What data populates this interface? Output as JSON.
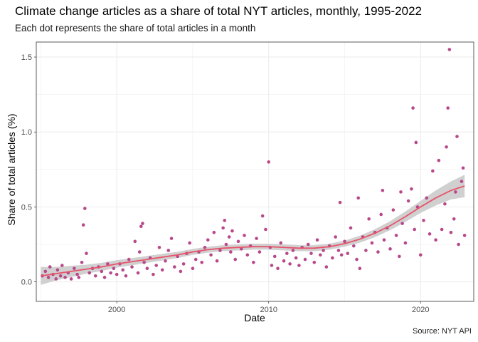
{
  "chart_data": {
    "type": "scatter",
    "title": "Climate change articles as a share of total NYT articles, monthly, 1995-2022",
    "subtitle": "Each dot represents the share of total articles in a month",
    "caption": "Source: NYT API",
    "xlabel": "Date",
    "ylabel": "Share of total articles (%)",
    "xlim": [
      1994.7,
      2023.5
    ],
    "ylim": [
      -0.13,
      1.6
    ],
    "x_ticks": [
      2000,
      2010,
      2020
    ],
    "x_tick_labels": [
      "2000",
      "2010",
      "2020"
    ],
    "y_ticks": [
      0.0,
      0.5,
      1.0,
      1.5
    ],
    "y_tick_labels": [
      "0.0",
      "0.5",
      "1.0",
      "1.5"
    ],
    "grid": true,
    "legend": "none",
    "colors": {
      "points": "#b8488a",
      "smooth": "#e8536a",
      "band": "#c8c8c8",
      "grid": "#ebebeb"
    },
    "points": [
      [
        1995.1,
        0.04
      ],
      [
        1995.3,
        0.07
      ],
      [
        1995.5,
        0.03
      ],
      [
        1995.6,
        0.1
      ],
      [
        1995.8,
        0.05
      ],
      [
        1996.0,
        0.02
      ],
      [
        1996.1,
        0.08
      ],
      [
        1996.3,
        0.04
      ],
      [
        1996.4,
        0.11
      ],
      [
        1996.6,
        0.03
      ],
      [
        1996.8,
        0.06
      ],
      [
        1997.0,
        0.02
      ],
      [
        1997.2,
        0.09
      ],
      [
        1997.4,
        0.05
      ],
      [
        1997.5,
        0.03
      ],
      [
        1997.7,
        0.13
      ],
      [
        1997.8,
        0.38
      ],
      [
        1997.9,
        0.49
      ],
      [
        1998.0,
        0.19
      ],
      [
        1998.2,
        0.06
      ],
      [
        1998.4,
        0.09
      ],
      [
        1998.6,
        0.04
      ],
      [
        1998.8,
        0.1
      ],
      [
        1999.0,
        0.07
      ],
      [
        1999.2,
        0.03
      ],
      [
        1999.4,
        0.12
      ],
      [
        1999.6,
        0.06
      ],
      [
        1999.8,
        0.09
      ],
      [
        2000.0,
        0.05
      ],
      [
        2000.2,
        0.12
      ],
      [
        2000.4,
        0.08
      ],
      [
        2000.6,
        0.04
      ],
      [
        2000.8,
        0.15
      ],
      [
        2001.0,
        0.1
      ],
      [
        2001.2,
        0.27
      ],
      [
        2001.4,
        0.06
      ],
      [
        2001.5,
        0.2
      ],
      [
        2001.6,
        0.37
      ],
      [
        2001.7,
        0.39
      ],
      [
        2001.8,
        0.13
      ],
      [
        2002.0,
        0.09
      ],
      [
        2002.2,
        0.16
      ],
      [
        2002.4,
        0.05
      ],
      [
        2002.6,
        0.11
      ],
      [
        2002.8,
        0.23
      ],
      [
        2003.0,
        0.08
      ],
      [
        2003.2,
        0.14
      ],
      [
        2003.4,
        0.21
      ],
      [
        2003.6,
        0.29
      ],
      [
        2003.8,
        0.1
      ],
      [
        2004.0,
        0.17
      ],
      [
        2004.2,
        0.07
      ],
      [
        2004.4,
        0.12
      ],
      [
        2004.6,
        0.19
      ],
      [
        2004.8,
        0.26
      ],
      [
        2005.0,
        0.09
      ],
      [
        2005.2,
        0.15
      ],
      [
        2005.4,
        0.2
      ],
      [
        2005.6,
        0.13
      ],
      [
        2005.8,
        0.23
      ],
      [
        2006.0,
        0.28
      ],
      [
        2006.2,
        0.18
      ],
      [
        2006.4,
        0.33
      ],
      [
        2006.6,
        0.14
      ],
      [
        2006.8,
        0.21
      ],
      [
        2007.0,
        0.36
      ],
      [
        2007.1,
        0.41
      ],
      [
        2007.2,
        0.25
      ],
      [
        2007.4,
        0.3
      ],
      [
        2007.5,
        0.2
      ],
      [
        2007.6,
        0.34
      ],
      [
        2007.8,
        0.15
      ],
      [
        2008.0,
        0.27
      ],
      [
        2008.2,
        0.22
      ],
      [
        2008.4,
        0.31
      ],
      [
        2008.6,
        0.18
      ],
      [
        2008.8,
        0.24
      ],
      [
        2009.0,
        0.13
      ],
      [
        2009.2,
        0.29
      ],
      [
        2009.4,
        0.2
      ],
      [
        2009.6,
        0.44
      ],
      [
        2009.8,
        0.35
      ],
      [
        2010.0,
        0.8
      ],
      [
        2010.1,
        0.23
      ],
      [
        2010.2,
        0.11
      ],
      [
        2010.4,
        0.17
      ],
      [
        2010.6,
        0.09
      ],
      [
        2010.8,
        0.26
      ],
      [
        2011.0,
        0.14
      ],
      [
        2011.2,
        0.19
      ],
      [
        2011.4,
        0.12
      ],
      [
        2011.6,
        0.21
      ],
      [
        2011.8,
        0.16
      ],
      [
        2012.0,
        0.11
      ],
      [
        2012.2,
        0.23
      ],
      [
        2012.4,
        0.15
      ],
      [
        2012.6,
        0.25
      ],
      [
        2012.8,
        0.19
      ],
      [
        2013.0,
        0.13
      ],
      [
        2013.2,
        0.28
      ],
      [
        2013.4,
        0.18
      ],
      [
        2013.6,
        0.21
      ],
      [
        2013.8,
        0.1
      ],
      [
        2014.0,
        0.24
      ],
      [
        2014.2,
        0.16
      ],
      [
        2014.4,
        0.3
      ],
      [
        2014.6,
        0.21
      ],
      [
        2014.7,
        0.53
      ],
      [
        2014.8,
        0.18
      ],
      [
        2015.0,
        0.27
      ],
      [
        2015.2,
        0.19
      ],
      [
        2015.4,
        0.36
      ],
      [
        2015.6,
        0.24
      ],
      [
        2015.8,
        0.15
      ],
      [
        2015.9,
        0.56
      ],
      [
        2016.0,
        0.09
      ],
      [
        2016.2,
        0.3
      ],
      [
        2016.4,
        0.21
      ],
      [
        2016.6,
        0.42
      ],
      [
        2016.8,
        0.26
      ],
      [
        2017.0,
        0.33
      ],
      [
        2017.2,
        0.2
      ],
      [
        2017.4,
        0.45
      ],
      [
        2017.5,
        0.61
      ],
      [
        2017.6,
        0.28
      ],
      [
        2017.8,
        0.36
      ],
      [
        2018.0,
        0.22
      ],
      [
        2018.2,
        0.48
      ],
      [
        2018.4,
        0.31
      ],
      [
        2018.6,
        0.17
      ],
      [
        2018.7,
        0.6
      ],
      [
        2018.8,
        0.39
      ],
      [
        2019.0,
        0.26
      ],
      [
        2019.2,
        0.54
      ],
      [
        2019.4,
        0.62
      ],
      [
        2019.5,
        1.16
      ],
      [
        2019.6,
        0.35
      ],
      [
        2019.7,
        0.93
      ],
      [
        2019.8,
        0.5
      ],
      [
        2020.0,
        0.18
      ],
      [
        2020.2,
        0.41
      ],
      [
        2020.4,
        0.56
      ],
      [
        2020.6,
        0.32
      ],
      [
        2020.8,
        0.74
      ],
      [
        2021.0,
        0.28
      ],
      [
        2021.2,
        0.81
      ],
      [
        2021.4,
        0.35
      ],
      [
        2021.6,
        0.52
      ],
      [
        2021.7,
        0.9
      ],
      [
        2021.8,
        1.16
      ],
      [
        2021.9,
        1.55
      ],
      [
        2022.0,
        0.33
      ],
      [
        2022.2,
        0.42
      ],
      [
        2022.3,
        0.6
      ],
      [
        2022.4,
        0.97
      ],
      [
        2022.5,
        0.25
      ],
      [
        2022.7,
        0.67
      ],
      [
        2022.8,
        0.76
      ],
      [
        2022.9,
        0.31
      ]
    ],
    "smooth": [
      [
        1995.0,
        0.04
      ],
      [
        1996.0,
        0.055
      ],
      [
        1997.0,
        0.07
      ],
      [
        1998.0,
        0.085
      ],
      [
        1999.0,
        0.1
      ],
      [
        2000.0,
        0.12
      ],
      [
        2001.0,
        0.135
      ],
      [
        2002.0,
        0.15
      ],
      [
        2003.0,
        0.165
      ],
      [
        2004.0,
        0.18
      ],
      [
        2005.0,
        0.2
      ],
      [
        2006.0,
        0.215
      ],
      [
        2007.0,
        0.225
      ],
      [
        2008.0,
        0.23
      ],
      [
        2009.0,
        0.235
      ],
      [
        2010.0,
        0.235
      ],
      [
        2011.0,
        0.23
      ],
      [
        2012.0,
        0.225
      ],
      [
        2013.0,
        0.225
      ],
      [
        2014.0,
        0.235
      ],
      [
        2015.0,
        0.255
      ],
      [
        2016.0,
        0.285
      ],
      [
        2017.0,
        0.325
      ],
      [
        2018.0,
        0.375
      ],
      [
        2019.0,
        0.435
      ],
      [
        2020.0,
        0.5
      ],
      [
        2021.0,
        0.56
      ],
      [
        2022.0,
        0.61
      ],
      [
        2022.9,
        0.64
      ]
    ],
    "band_halfwidth": [
      [
        1995.0,
        0.06
      ],
      [
        1996.0,
        0.045
      ],
      [
        1998.0,
        0.03
      ],
      [
        2000.0,
        0.025
      ],
      [
        2005.0,
        0.02
      ],
      [
        2010.0,
        0.02
      ],
      [
        2015.0,
        0.02
      ],
      [
        2018.0,
        0.03
      ],
      [
        2020.0,
        0.04
      ],
      [
        2021.0,
        0.05
      ],
      [
        2022.0,
        0.06
      ],
      [
        2022.9,
        0.075
      ]
    ]
  }
}
